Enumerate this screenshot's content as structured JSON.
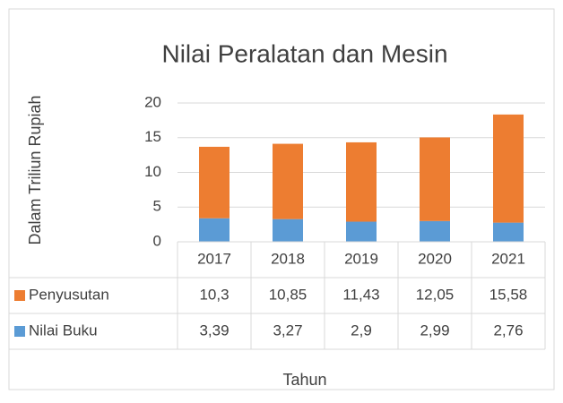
{
  "chart_data": {
    "type": "stacked_bar",
    "title": "Nilai Peralatan dan Mesin",
    "x_label": "Tahun",
    "y_label": "Dalam Triliun Rupiah",
    "categories": [
      "2017",
      "2018",
      "2019",
      "2020",
      "2021"
    ],
    "series": [
      {
        "name": "Penyusutan",
        "color": "#ed7d31",
        "values": [
          10.3,
          10.85,
          11.43,
          12.05,
          15.58
        ],
        "value_labels": [
          "10,3",
          "10,85",
          "11,43",
          "12,05",
          "15,58"
        ]
      },
      {
        "name": "Nilai Buku",
        "color": "#5b9bd5",
        "values": [
          3.39,
          3.27,
          2.9,
          2.99,
          2.76
        ],
        "value_labels": [
          "3,39",
          "3,27",
          "2,9",
          "2,99",
          "2,76"
        ]
      }
    ],
    "ylim": [
      0,
      20
    ],
    "yticks": [
      0,
      5,
      10,
      15,
      20
    ],
    "grid": true,
    "legend": "data-table"
  }
}
